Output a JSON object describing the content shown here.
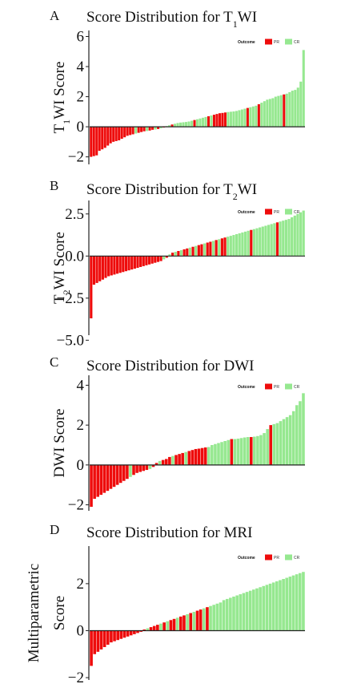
{
  "colors": {
    "PR": "#ee0c0c",
    "CR": "#96e890"
  },
  "chart_data": [
    {
      "type": "bar",
      "letter": "A",
      "title_main": "Score Distribution for T",
      "title_sub": "1",
      "title_end": "WI",
      "ylabel_main": "T",
      "ylabel_sub": "1",
      "ylabel_end": "WI Score",
      "ylim": [
        -2.5,
        6.4
      ],
      "yticks": [
        -2,
        0,
        2,
        4,
        6
      ],
      "ytick_labels": [
        "−2",
        "0",
        "2",
        "4",
        "6"
      ],
      "legend": {
        "title": "Outcome",
        "entries": [
          "PR",
          "CR"
        ]
      },
      "values": [
        -2.0,
        -1.95,
        -1.9,
        -1.6,
        -1.5,
        -1.4,
        -1.25,
        -1.1,
        -1.0,
        -0.95,
        -0.9,
        -0.8,
        -0.7,
        -0.6,
        -0.55,
        -0.5,
        -0.45,
        -0.4,
        -0.35,
        -0.3,
        -0.28,
        -0.25,
        -0.2,
        -0.18,
        -0.15,
        -0.1,
        -0.05,
        0.05,
        0.1,
        0.15,
        0.2,
        0.25,
        0.28,
        0.3,
        0.32,
        0.35,
        0.4,
        0.45,
        0.5,
        0.55,
        0.6,
        0.65,
        0.7,
        0.75,
        0.8,
        0.85,
        0.9,
        0.92,
        0.95,
        0.98,
        1.0,
        1.02,
        1.05,
        1.1,
        1.15,
        1.2,
        1.25,
        1.3,
        1.35,
        1.4,
        1.5,
        1.6,
        1.7,
        1.8,
        1.85,
        1.9,
        2.0,
        2.05,
        2.1,
        2.15,
        2.2,
        2.3,
        2.4,
        2.45,
        2.6,
        3.0,
        5.1
      ],
      "outcomes": [
        "PR",
        "PR",
        "PR",
        "PR",
        "PR",
        "PR",
        "PR",
        "PR",
        "PR",
        "PR",
        "PR",
        "PR",
        "PR",
        "PR",
        "PR",
        "PR",
        "CR",
        "PR",
        "PR",
        "PR",
        "CR",
        "PR",
        "PR",
        "CR",
        "PR",
        "CR",
        "PR",
        "CR",
        "CR",
        "PR",
        "CR",
        "CR",
        "CR",
        "CR",
        "CR",
        "CR",
        "CR",
        "PR",
        "CR",
        "CR",
        "CR",
        "CR",
        "PR",
        "CR",
        "PR",
        "PR",
        "PR",
        "PR",
        "PR",
        "CR",
        "CR",
        "CR",
        "CR",
        "CR",
        "CR",
        "CR",
        "PR",
        "CR",
        "CR",
        "CR",
        "PR",
        "CR",
        "CR",
        "CR",
        "CR",
        "CR",
        "CR",
        "CR",
        "CR",
        "PR",
        "CR",
        "CR",
        "CR",
        "CR",
        "CR",
        "CR",
        "CR"
      ]
    },
    {
      "type": "bar",
      "letter": "B",
      "title_main": "Score Distribution for T",
      "title_sub": "2",
      "title_end": "WI",
      "ylabel_main": "T",
      "ylabel_sub": "2",
      "ylabel_end": "WI Score",
      "ylim": [
        -4.7,
        3.3
      ],
      "yticks": [
        -5.0,
        -2.5,
        0.0,
        2.5
      ],
      "ytick_labels": [
        "−5.0",
        "−2.5",
        "0.0",
        "2.5"
      ],
      "legend": {
        "title": "Outcome",
        "entries": [
          "PR",
          "CR"
        ]
      },
      "values": [
        -3.7,
        -1.7,
        -1.6,
        -1.5,
        -1.4,
        -1.3,
        -1.2,
        -1.15,
        -1.1,
        -1.05,
        -1.0,
        -0.95,
        -0.9,
        -0.85,
        -0.8,
        -0.75,
        -0.7,
        -0.65,
        -0.6,
        -0.55,
        -0.5,
        -0.45,
        -0.4,
        -0.35,
        -0.3,
        -0.2,
        -0.1,
        0.1,
        0.2,
        0.25,
        0.3,
        0.35,
        0.4,
        0.45,
        0.5,
        0.55,
        0.6,
        0.65,
        0.7,
        0.75,
        0.8,
        0.85,
        0.9,
        0.95,
        1.0,
        1.05,
        1.1,
        1.15,
        1.2,
        1.25,
        1.3,
        1.35,
        1.4,
        1.45,
        1.5,
        1.55,
        1.6,
        1.65,
        1.7,
        1.75,
        1.8,
        1.85,
        1.9,
        1.95,
        2.0,
        2.05,
        2.1,
        2.15,
        2.2,
        2.3,
        2.4,
        2.5,
        2.6,
        2.7
      ],
      "outcomes": [
        "PR",
        "PR",
        "PR",
        "PR",
        "PR",
        "PR",
        "PR",
        "PR",
        "PR",
        "PR",
        "PR",
        "PR",
        "PR",
        "PR",
        "PR",
        "PR",
        "PR",
        "PR",
        "PR",
        "PR",
        "PR",
        "PR",
        "PR",
        "PR",
        "PR",
        "CR",
        "PR",
        "CR",
        "PR",
        "CR",
        "PR",
        "CR",
        "PR",
        "PR",
        "CR",
        "PR",
        "CR",
        "PR",
        "PR",
        "CR",
        "PR",
        "PR",
        "CR",
        "PR",
        "CR",
        "PR",
        "PR",
        "CR",
        "CR",
        "CR",
        "CR",
        "CR",
        "CR",
        "CR",
        "CR",
        "PR",
        "CR",
        "CR",
        "CR",
        "CR",
        "CR",
        "CR",
        "CR",
        "CR",
        "PR",
        "CR",
        "CR",
        "CR",
        "CR",
        "CR",
        "CR",
        "CR",
        "CR",
        "CR"
      ]
    },
    {
      "type": "bar",
      "letter": "C",
      "title_main": "Score Distribution for DWI",
      "title_sub": "",
      "title_end": "",
      "ylabel_main": "DWI Score",
      "ylabel_sub": "",
      "ylabel_end": "",
      "ylim": [
        -2.3,
        4.5
      ],
      "yticks": [
        -2,
        0,
        2,
        4
      ],
      "ytick_labels": [
        "−2",
        "0",
        "2",
        "4"
      ],
      "legend": {
        "title": "Outcome",
        "entries": [
          "PR",
          "CR"
        ]
      },
      "values": [
        -2.1,
        -1.7,
        -1.6,
        -1.5,
        -1.4,
        -1.3,
        -1.2,
        -1.1,
        -1.0,
        -0.9,
        -0.8,
        -0.7,
        -0.6,
        -0.5,
        -0.4,
        -0.35,
        -0.3,
        -0.25,
        -0.2,
        -0.1,
        0.1,
        0.2,
        0.25,
        0.3,
        0.4,
        0.45,
        0.5,
        0.55,
        0.6,
        0.65,
        0.7,
        0.75,
        0.8,
        0.82,
        0.85,
        0.88,
        0.9,
        1.0,
        1.05,
        1.1,
        1.15,
        1.2,
        1.25,
        1.3,
        1.3,
        1.32,
        1.35,
        1.38,
        1.4,
        1.4,
        1.42,
        1.45,
        1.5,
        1.6,
        1.8,
        2.0,
        2.05,
        2.1,
        2.2,
        2.3,
        2.4,
        2.5,
        2.7,
        3.0,
        3.2,
        3.6
      ],
      "outcomes": [
        "PR",
        "PR",
        "PR",
        "PR",
        "PR",
        "PR",
        "PR",
        "PR",
        "PR",
        "PR",
        "PR",
        "PR",
        "CR",
        "PR",
        "PR",
        "PR",
        "PR",
        "PR",
        "CR",
        "PR",
        "PR",
        "CR",
        "PR",
        "PR",
        "PR",
        "CR",
        "PR",
        "PR",
        "PR",
        "CR",
        "PR",
        "PR",
        "PR",
        "PR",
        "PR",
        "PR",
        "CR",
        "CR",
        "CR",
        "CR",
        "CR",
        "CR",
        "CR",
        "PR",
        "CR",
        "CR",
        "CR",
        "CR",
        "CR",
        "PR",
        "CR",
        "CR",
        "CR",
        "CR",
        "CR",
        "PR",
        "CR",
        "CR",
        "CR",
        "CR",
        "CR",
        "CR",
        "CR",
        "CR",
        "CR",
        "CR"
      ]
    },
    {
      "type": "bar",
      "letter": "D",
      "title_main": "Score Distribution for MRI",
      "title_sub": "",
      "title_end": "",
      "ylabel_main": "Multiparametric",
      "ylabel_line2": "Score",
      "ylabel_sub": "",
      "ylabel_end": "",
      "ylim": [
        -2.1,
        3.6
      ],
      "yticks": [
        -2,
        0,
        2
      ],
      "ytick_labels": [
        "−2",
        "0",
        "2"
      ],
      "legend": {
        "title": "Outcome",
        "entries": [
          "PR",
          "CR"
        ]
      },
      "values": [
        -1.5,
        -1.0,
        -0.9,
        -0.8,
        -0.7,
        -0.6,
        -0.5,
        -0.45,
        -0.4,
        -0.35,
        -0.3,
        -0.25,
        -0.2,
        -0.15,
        -0.1,
        -0.05,
        0.05,
        0.1,
        0.15,
        0.2,
        0.25,
        0.3,
        0.35,
        0.4,
        0.45,
        0.5,
        0.55,
        0.6,
        0.65,
        0.7,
        0.75,
        0.8,
        0.85,
        0.9,
        0.95,
        1.0,
        1.05,
        1.1,
        1.15,
        1.2,
        1.3,
        1.35,
        1.4,
        1.45,
        1.5,
        1.55,
        1.6,
        1.65,
        1.7,
        1.75,
        1.8,
        1.85,
        1.9,
        1.95,
        2.0,
        2.05,
        2.1,
        2.15,
        2.2,
        2.25,
        2.3,
        2.35,
        2.4,
        2.45,
        2.5
      ],
      "outcomes": [
        "PR",
        "PR",
        "PR",
        "PR",
        "PR",
        "PR",
        "PR",
        "PR",
        "PR",
        "PR",
        "PR",
        "PR",
        "PR",
        "PR",
        "PR",
        "PR",
        "PR",
        "CR",
        "PR",
        "PR",
        "PR",
        "CR",
        "PR",
        "CR",
        "PR",
        "PR",
        "CR",
        "PR",
        "PR",
        "CR",
        "PR",
        "CR",
        "PR",
        "PR",
        "CR",
        "PR",
        "CR",
        "CR",
        "CR",
        "CR",
        "CR",
        "CR",
        "CR",
        "CR",
        "CR",
        "CR",
        "CR",
        "CR",
        "CR",
        "CR",
        "CR",
        "CR",
        "CR",
        "CR",
        "CR",
        "CR",
        "CR",
        "CR",
        "CR",
        "CR",
        "CR",
        "CR",
        "CR",
        "CR",
        "CR"
      ]
    }
  ]
}
